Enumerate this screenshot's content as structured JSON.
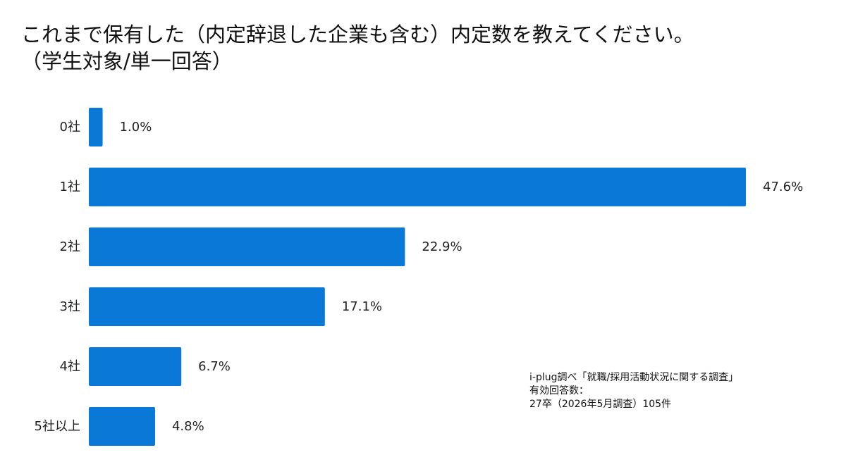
{
  "title": {
    "line1": "これまで保有した（内定辞退した企業も含む）内定数を教えてください。",
    "line2": "（学生対象/単一回答）"
  },
  "note": {
    "line1": "i-plug調べ「就職/採用活動状況に関する調査」",
    "line2": "有効回答数：",
    "line3": "27卒（2026年5月調査）105件"
  },
  "colors": {
    "bar": "#0a78d7",
    "text": "#222222"
  },
  "chart_data": {
    "type": "bar",
    "orientation": "horizontal",
    "title": "これまで保有した（内定辞退した企業も含む）内定数を教えてください。（学生対象/単一回答）",
    "categories": [
      "0社",
      "1社",
      "2社",
      "3社",
      "4社",
      "5社以上"
    ],
    "values": [
      1.0,
      47.6,
      22.9,
      17.1,
      6.7,
      4.8
    ],
    "value_labels": [
      "1.0%",
      "47.6%",
      "22.9%",
      "17.1%",
      "6.7%",
      "4.8%"
    ],
    "xlabel": "",
    "ylabel": "",
    "grid": false,
    "legend": "none"
  }
}
